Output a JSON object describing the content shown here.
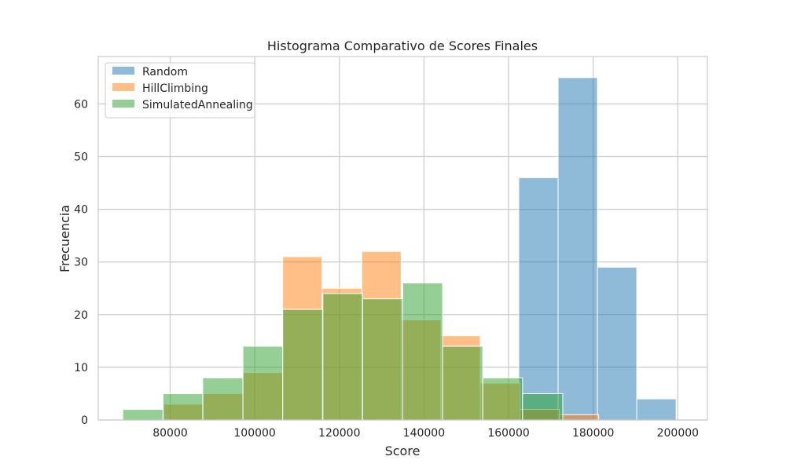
{
  "chart_data": {
    "type": "bar",
    "subtype": "overlaid-histogram",
    "title": "Histograma Comparativo de Scores Finales",
    "xlabel": "Score",
    "ylabel": "Frecuencia",
    "xlim": [
      63000,
      207000
    ],
    "ylim": [
      0,
      69
    ],
    "x_ticks": [
      80000,
      100000,
      120000,
      140000,
      160000,
      180000,
      200000
    ],
    "x_tick_labels": [
      "80000",
      "100000",
      "120000",
      "140000",
      "160000",
      "180000",
      "200000"
    ],
    "y_ticks": [
      0,
      10,
      20,
      30,
      40,
      50,
      60
    ],
    "y_tick_labels": [
      "0",
      "10",
      "20",
      "30",
      "40",
      "50",
      "60"
    ],
    "grid": true,
    "legend_position": "top-left",
    "series": [
      {
        "name": "Random",
        "color": "#1f77b4",
        "bins": [
          {
            "start": 162400,
            "end": 171700,
            "count": 46
          },
          {
            "start": 171700,
            "end": 181000,
            "count": 65
          },
          {
            "start": 181000,
            "end": 190300,
            "count": 29
          },
          {
            "start": 190300,
            "end": 199600,
            "count": 4
          }
        ]
      },
      {
        "name": "HillClimbing",
        "color": "#ff7f0e",
        "bins": [
          {
            "start": 78500,
            "end": 87800,
            "count": 3
          },
          {
            "start": 87800,
            "end": 97200,
            "count": 5
          },
          {
            "start": 97200,
            "end": 106600,
            "count": 9
          },
          {
            "start": 106600,
            "end": 115900,
            "count": 31
          },
          {
            "start": 115900,
            "end": 125300,
            "count": 25
          },
          {
            "start": 125300,
            "end": 134600,
            "count": 32
          },
          {
            "start": 134600,
            "end": 144000,
            "count": 19
          },
          {
            "start": 144000,
            "end": 153300,
            "count": 16
          },
          {
            "start": 153300,
            "end": 162700,
            "count": 7
          },
          {
            "start": 162700,
            "end": 172000,
            "count": 2
          },
          {
            "start": 172000,
            "end": 181300,
            "count": 1
          }
        ]
      },
      {
        "name": "SimulatedAnnealing",
        "color": "#2ca02c",
        "bins": [
          {
            "start": 68800,
            "end": 78300,
            "count": 2
          },
          {
            "start": 78300,
            "end": 87700,
            "count": 5
          },
          {
            "start": 87700,
            "end": 97200,
            "count": 8
          },
          {
            "start": 97200,
            "end": 106600,
            "count": 14
          },
          {
            "start": 106600,
            "end": 116100,
            "count": 21
          },
          {
            "start": 116100,
            "end": 125500,
            "count": 24
          },
          {
            "start": 125500,
            "end": 135000,
            "count": 23
          },
          {
            "start": 135000,
            "end": 144400,
            "count": 26
          },
          {
            "start": 144400,
            "end": 153900,
            "count": 14
          },
          {
            "start": 153900,
            "end": 163300,
            "count": 8
          },
          {
            "start": 163300,
            "end": 172800,
            "count": 5
          }
        ]
      }
    ]
  }
}
